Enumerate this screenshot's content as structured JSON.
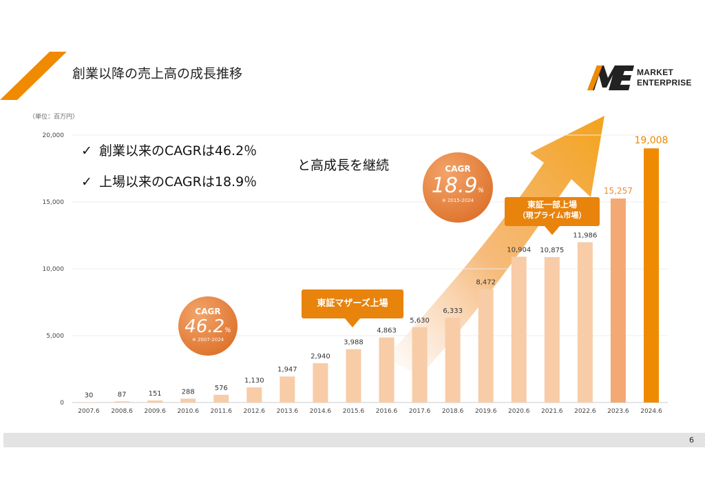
{
  "slide": {
    "title": "創業以降の売上高の成長推移",
    "unit": "（単位：百万円）",
    "page_number": "6"
  },
  "logo": {
    "mark_text": "ME",
    "line1": "MARKET",
    "line2": "ENTERPRISE"
  },
  "highlights": {
    "bullets": [
      {
        "check": "✓",
        "text": "創業以来のCAGRは46.2％"
      },
      {
        "check": "✓",
        "text": "上場以来のCAGRは18.9％"
      }
    ],
    "suffix": "と高成長を継続"
  },
  "cagr_badges": [
    {
      "label": "CAGR",
      "value": "46.2",
      "pct": "%",
      "note": "※ 2007-2024"
    },
    {
      "label": "CAGR",
      "value": "18.9",
      "pct": "%",
      "note": "※ 2015-2024"
    }
  ],
  "callouts": [
    {
      "text": "東証マザーズ上場"
    },
    {
      "line1": "東証一部上場",
      "line2": "（現プライム市場）"
    }
  ],
  "colors": {
    "accent_orange": "#f08a00",
    "bar_light": "#f7cca7",
    "bar_mid": "#f4a873",
    "circle_light": "#f19a55",
    "circle_dark": "#d96a1f"
  },
  "chart_data": {
    "type": "bar",
    "categories": [
      "2007.6",
      "2008.6",
      "2009.6",
      "2010.6",
      "2011.6",
      "2012.6",
      "2013.6",
      "2014.6",
      "2015.6",
      "2016.6",
      "2017.6",
      "2018.6",
      "2019.6",
      "2020.6",
      "2021.6",
      "2022.6",
      "2023.6",
      "2024.6"
    ],
    "values": [
      30,
      87,
      151,
      288,
      576,
      1130,
      1947,
      2940,
      3988,
      4863,
      5630,
      6333,
      8472,
      10904,
      10875,
      11986,
      15257,
      19008
    ],
    "value_labels": [
      "30",
      "87",
      "151",
      "288",
      "576",
      "1,130",
      "1,947",
      "2,940",
      "3,988",
      "4,863",
      "5,630",
      "6,333",
      "8,472",
      "10,904",
      "10,875",
      "11,986",
      "15,257",
      "19,008"
    ],
    "y_ticks": [
      0,
      5000,
      10000,
      15000,
      20000
    ],
    "y_tick_labels": [
      "0",
      "5,000",
      "10,000",
      "15,000",
      "20,000"
    ],
    "ylim": [
      0,
      20000
    ],
    "grid": true
  }
}
